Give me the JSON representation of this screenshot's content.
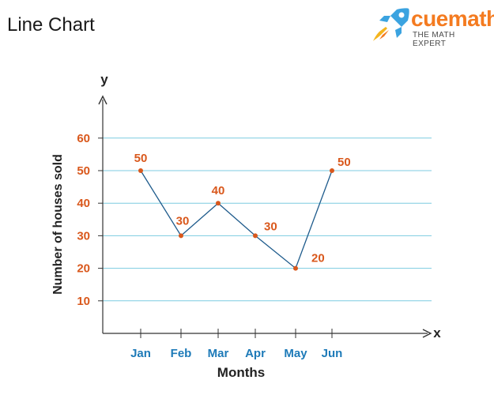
{
  "page": {
    "title": "Line Chart"
  },
  "brand": {
    "name": "cuemath",
    "tagline": "THE MATH EXPERT",
    "colors": {
      "orange": "#f47b20",
      "blue": "#3ba3e0"
    }
  },
  "chart_data": {
    "type": "line",
    "categories": [
      "Jan",
      "Feb",
      "Mar",
      "Apr",
      "May",
      "Jun"
    ],
    "values": [
      50,
      30,
      40,
      30,
      20,
      50
    ],
    "data_labels": [
      "50",
      "30",
      "40",
      "30",
      "20",
      "50"
    ],
    "xlabel": "Months",
    "ylabel": "Number of houses sold",
    "x_axis_letter": "x",
    "y_axis_letter": "y",
    "y_ticks": [
      10,
      20,
      30,
      40,
      50,
      60
    ],
    "y_tick_labels": [
      "10",
      "20",
      "30",
      "40",
      "50",
      "60"
    ],
    "ylim": [
      0,
      60
    ],
    "grid": true,
    "colors": {
      "line": "#1e5b8c",
      "marker": "#d9581c",
      "data_label": "#d9581c",
      "y_tick_label": "#d9581c",
      "x_tick_label": "#1d7ab8",
      "grid": "#7ccbe0",
      "axis": "#333333"
    }
  }
}
